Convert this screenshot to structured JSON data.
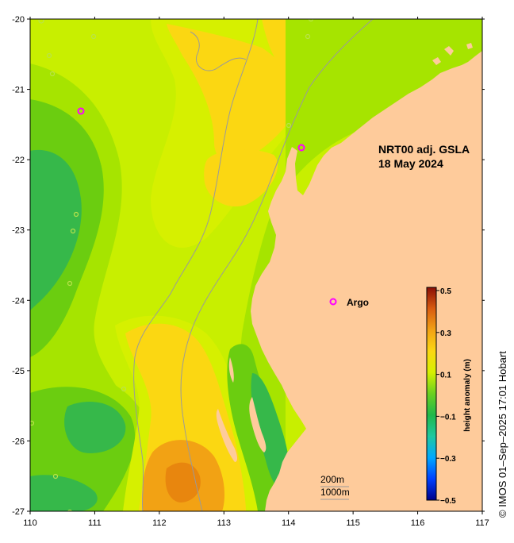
{
  "map": {
    "title_line1": "NRT00 adj. GSLA",
    "title_line2": "18 May 2024",
    "x_ticks": [
      "110",
      "111",
      "112",
      "113",
      "114",
      "115",
      "116",
      "117"
    ],
    "y_ticks": [
      "-20",
      "-21",
      "-22",
      "-23",
      "-24",
      "-25",
      "-26",
      "-27"
    ],
    "legend_argo_label": "Argo",
    "scale_200m": "200m",
    "scale_1000m": "1000m",
    "copyright": "© IMOS 01–Sep–2025 17:01 Hobart"
  },
  "colorbar": {
    "label": "height anomaly (m)",
    "ticks": [
      "0.5",
      "0.3",
      "0.1",
      "−0.1",
      "−0.3",
      "−0.5"
    ]
  },
  "colors": {
    "land": "#fecb9b",
    "argo": "#ff00ff",
    "isobath": "#9a9a9a",
    "orange": "#f2a214",
    "yellow_orange": "#fbd712",
    "yellow": "#d6f000",
    "yellow_green": "#c2ee00",
    "light_green": "#a6e400",
    "green": "#6bcd10",
    "dark_green": "#36b84a"
  }
}
